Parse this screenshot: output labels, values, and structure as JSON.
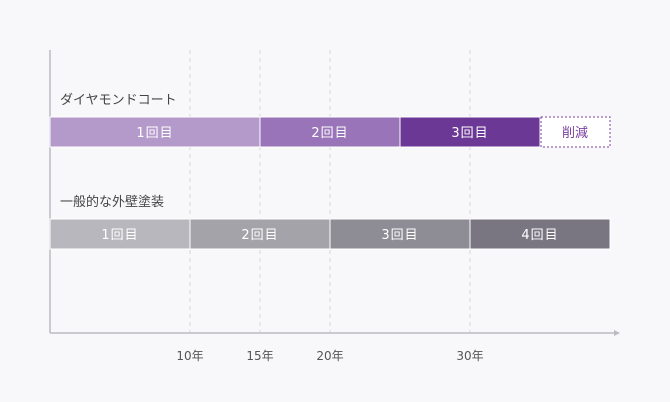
{
  "chart_data": {
    "type": "bar",
    "orientation": "horizontal-timeline",
    "x_unit": "年",
    "xlim": [
      0,
      40
    ],
    "ticks": [
      {
        "value": 10,
        "label": "10年"
      },
      {
        "value": 15,
        "label": "15年"
      },
      {
        "value": 20,
        "label": "20年"
      },
      {
        "value": 30,
        "label": "30年"
      }
    ],
    "series": [
      {
        "name": "ダイヤモンドコート",
        "segments": [
          {
            "label": "1回目",
            "start": 0,
            "end": 15,
            "color": "#b49acb"
          },
          {
            "label": "2回目",
            "start": 15,
            "end": 25,
            "color": "#9a74b8"
          },
          {
            "label": "3回目",
            "start": 25,
            "end": 35,
            "color": "#6c3895"
          },
          {
            "label": "削減",
            "start": 35,
            "end": 40,
            "color": "#ffffff",
            "dashed": true
          }
        ]
      },
      {
        "name": "一般的な外壁塗装",
        "segments": [
          {
            "label": "1回目",
            "start": 0,
            "end": 10,
            "color": "#b8b7bd"
          },
          {
            "label": "2回目",
            "start": 10,
            "end": 20,
            "color": "#a4a3aa"
          },
          {
            "label": "3回目",
            "start": 20,
            "end": 30,
            "color": "#8e8c95"
          },
          {
            "label": "4回目",
            "start": 30,
            "end": 40,
            "color": "#797681"
          }
        ]
      }
    ],
    "colors": {
      "axis": "#bbbbc2",
      "gridline": "#d6d6dc",
      "dashed_border": "#7a3fa0"
    }
  }
}
